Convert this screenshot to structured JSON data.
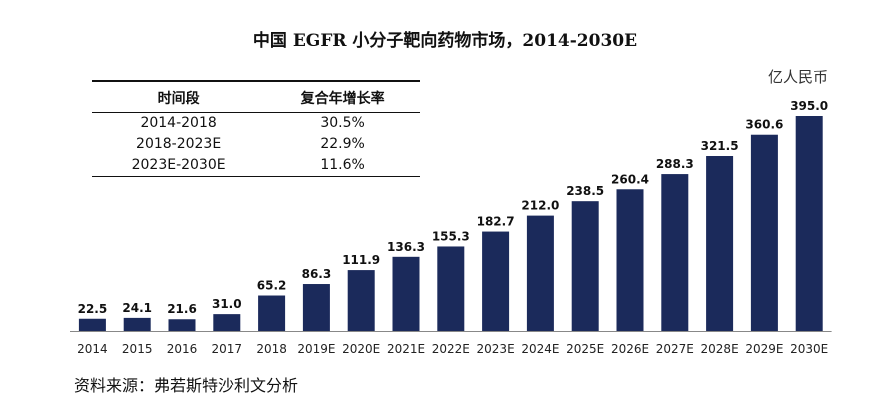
{
  "title": "中国 EGFR 小分子靶向药物市场，2014-2030E",
  "unit_label": "亿人民币",
  "table": {
    "headers": [
      "时间段",
      "复合年增长率"
    ],
    "rows": [
      {
        "period": "2014-2018",
        "cagr": "30.5%"
      },
      {
        "period": "2018-2023E",
        "cagr": "22.9%"
      },
      {
        "period": "2023E-2030E",
        "cagr": "11.6%"
      }
    ]
  },
  "source": "资料来源：弗若斯特沙利文分析",
  "colors": {
    "bar": "#1b2a5b",
    "axis": "#888888"
  },
  "chart_data": {
    "type": "bar",
    "title": "中国 EGFR 小分子靶向药物市场，2014-2030E",
    "ylabel": "亿人民币",
    "categories": [
      "2014",
      "2015",
      "2016",
      "2017",
      "2018",
      "2019E",
      "2020E",
      "2021E",
      "2022E",
      "2023E",
      "2024E",
      "2025E",
      "2026E",
      "2027E",
      "2028E",
      "2029E",
      "2030E"
    ],
    "values": [
      22.5,
      24.1,
      21.6,
      31.0,
      65.2,
      86.3,
      111.9,
      136.3,
      155.3,
      182.7,
      212.0,
      238.5,
      260.4,
      288.3,
      321.5,
      360.6,
      395.0
    ],
    "value_labels": [
      "22.5",
      "24.1",
      "21.6",
      "31.0",
      "65.2",
      "86.3",
      "111.9",
      "136.3",
      "155.3",
      "182.7",
      "212.0",
      "238.5",
      "260.4",
      "288.3",
      "321.5",
      "360.6",
      "395.0"
    ],
    "ylim": [
      0,
      395.0
    ],
    "grid": false,
    "legend": "none"
  }
}
